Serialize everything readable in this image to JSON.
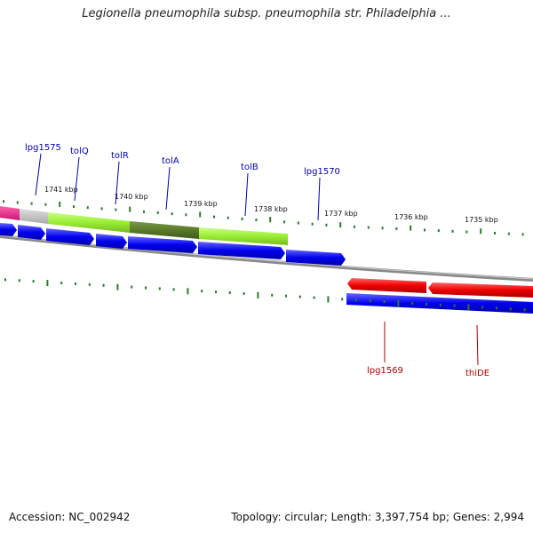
{
  "title": "Legionella pneumophila subsp. pneumophila str. Philadelphia ...",
  "footer": {
    "accession": "Accession: NC_002942",
    "summary": "Topology: circular; Length: 3,397,754 bp; Genes: 2,994"
  },
  "ticks": [
    {
      "label": "1741 kbp"
    },
    {
      "label": "1740 kbp"
    },
    {
      "label": "1739 kbp"
    },
    {
      "label": "1738 kbp"
    },
    {
      "label": "1737 kbp"
    },
    {
      "label": "1736 kbp"
    },
    {
      "label": "1735 kbp"
    }
  ],
  "genes_top": [
    {
      "label": "lpg1575"
    },
    {
      "label": "tolQ"
    },
    {
      "label": "tolR"
    },
    {
      "label": "tolA"
    },
    {
      "label": "tolB"
    },
    {
      "label": "lpg1570"
    }
  ],
  "genes_bottom": [
    {
      "label": "lpg1569"
    },
    {
      "label": "thiDE"
    }
  ],
  "colors": {
    "forward_gene": "#0000ee",
    "reverse_gene": "#ee0000",
    "backbone": "#888888",
    "tick": "#2a7a2a",
    "label_top": "#0000aa",
    "label_bottom": "#aa0000",
    "cog_green": "#99ee33",
    "cog_dark": "#5a7a2a",
    "cog_pink": "#ee2288",
    "cog_gray": "#bbbbbb"
  }
}
